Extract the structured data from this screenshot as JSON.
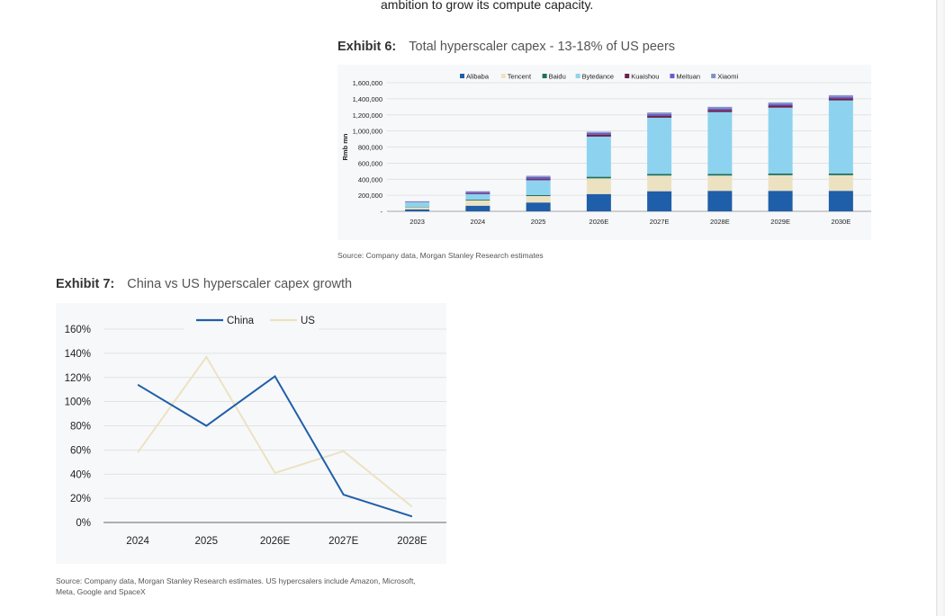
{
  "doc": {
    "top_text": "ambition to grow its compute capacity."
  },
  "exhibit6": {
    "label": "Exhibit 6:",
    "title": "Total hyperscaler capex - 13-18% of US peers",
    "source": "Source: Company data, Morgan Stanley Research estimates"
  },
  "exhibit7": {
    "label": "Exhibit 7:",
    "title": "China vs US hyperscaler capex growth",
    "source_line1": "Source: Company data, Morgan Stanley Research estimates. US hypercsalers include Amazon, Microsoft,",
    "source_line2": "Meta, Google and SpaceX"
  },
  "chart_data": [
    {
      "type": "bar",
      "stacked": true,
      "title": "",
      "xlabel": "",
      "ylabel": "Rmb mn",
      "ylim": [
        0,
        1600000
      ],
      "yticks": [
        "1,600,000",
        "1,400,000",
        "1,200,000",
        "1,000,000",
        "800,000",
        "600,000",
        "400,000",
        "200,000",
        "-"
      ],
      "ytick_values": [
        1600000,
        1400000,
        1200000,
        1000000,
        800000,
        600000,
        400000,
        200000,
        0
      ],
      "legend_position": "top",
      "grid": true,
      "categories": [
        "2023",
        "2024",
        "2025",
        "2026E",
        "2027E",
        "2028E",
        "2029E",
        "2030E"
      ],
      "series": [
        {
          "name": "Alibaba",
          "color": "#1f5ea8",
          "values": [
            25000,
            70000,
            110000,
            215000,
            250000,
            255000,
            255000,
            255000
          ]
        },
        {
          "name": "Tencent",
          "color": "#ece2c2",
          "values": [
            25000,
            65000,
            80000,
            195000,
            195000,
            190000,
            195000,
            195000
          ]
        },
        {
          "name": "Baidu",
          "color": "#1f6f5a",
          "values": [
            5000,
            10000,
            12000,
            20000,
            20000,
            20000,
            20000,
            20000
          ]
        },
        {
          "name": "Bytedance",
          "color": "#8dd3ef",
          "values": [
            60000,
            70000,
            185000,
            500000,
            700000,
            770000,
            820000,
            910000
          ]
        },
        {
          "name": "Kuaishou",
          "color": "#6b2148",
          "values": [
            3000,
            10000,
            15000,
            25000,
            25000,
            25000,
            25000,
            25000
          ]
        },
        {
          "name": "Meituan",
          "color": "#6a5acd",
          "values": [
            5000,
            15000,
            25000,
            20000,
            20000,
            20000,
            20000,
            20000
          ]
        },
        {
          "name": "Xiaomi",
          "color": "#7f93c4",
          "values": [
            2000,
            10000,
            15000,
            15000,
            20000,
            20000,
            20000,
            20000
          ]
        }
      ]
    },
    {
      "type": "line",
      "title": "",
      "xlabel": "",
      "ylabel": "",
      "ylim": [
        0,
        160
      ],
      "yticks": [
        "160%",
        "140%",
        "120%",
        "100%",
        "80%",
        "60%",
        "40%",
        "20%",
        "0%"
      ],
      "ytick_values": [
        160,
        140,
        120,
        100,
        80,
        60,
        40,
        20,
        0
      ],
      "legend_position": "top",
      "grid": true,
      "categories": [
        "2024",
        "2025",
        "2026E",
        "2027E",
        "2028E"
      ],
      "series": [
        {
          "name": "China",
          "color": "#1f5ea8",
          "values": [
            114,
            80,
            121,
            23,
            5
          ]
        },
        {
          "name": "US",
          "color": "#ece2c2",
          "values": [
            58,
            137,
            41,
            59,
            13
          ]
        }
      ]
    }
  ]
}
